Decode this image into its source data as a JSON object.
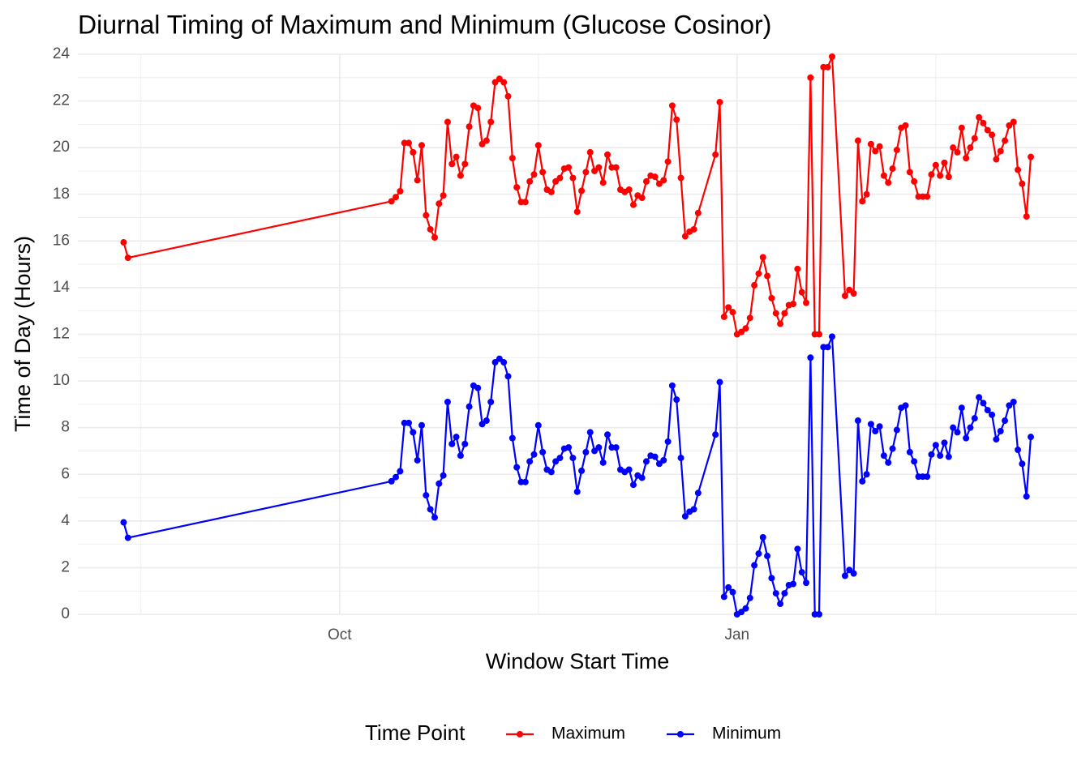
{
  "chart_data": {
    "type": "line",
    "title": "Diurnal Timing of Maximum and Minimum (Glucose Cosinor)",
    "xlabel": "Window Start Time",
    "ylabel": "Time of Day (Hours)",
    "legend_title": "Time Point",
    "legend": "bottom",
    "grid": true,
    "x": [
      -50,
      -49,
      12,
      13,
      14,
      15,
      16,
      17,
      18,
      19,
      20,
      21,
      22,
      23,
      24,
      25,
      26,
      27,
      28,
      29,
      30,
      31,
      32,
      33,
      34,
      35,
      36,
      37,
      38,
      39,
      40,
      41,
      42,
      43,
      44,
      45,
      46,
      47,
      48,
      49,
      50,
      51,
      52,
      53,
      54,
      55,
      56,
      57,
      58,
      59,
      60,
      61,
      62,
      63,
      64,
      65,
      66,
      67,
      68,
      69,
      70,
      71,
      72,
      73,
      74,
      75,
      76,
      77,
      78,
      79,
      80,
      81,
      82,
      83,
      87,
      88,
      89,
      90,
      91,
      92,
      93,
      94,
      95,
      96,
      97,
      98,
      99,
      100,
      101,
      102,
      103,
      104,
      105,
      106,
      107,
      108,
      109,
      110,
      111,
      112,
      113,
      114,
      117,
      118,
      119,
      120,
      121,
      122,
      123,
      124,
      125,
      126,
      127,
      128,
      129,
      130,
      131,
      132,
      133,
      134,
      135,
      136,
      137,
      138,
      139,
      140,
      141,
      142,
      143,
      144,
      145,
      146,
      147,
      148,
      149,
      150,
      151,
      152,
      153,
      154,
      155,
      156,
      157,
      158,
      159,
      160
    ],
    "series": [
      {
        "name": "Maximum",
        "color": "#ff0000",
        "values": [
          15.94,
          15.28,
          17.7,
          17.88,
          18.13,
          20.2,
          20.2,
          19.8,
          18.6,
          20.1,
          17.1,
          16.5,
          16.15,
          17.6,
          17.95,
          21.1,
          19.3,
          19.6,
          18.8,
          19.3,
          20.9,
          21.8,
          21.7,
          20.15,
          20.3,
          21.1,
          22.8,
          22.95,
          22.8,
          22.2,
          19.55,
          18.3,
          17.67,
          17.67,
          18.55,
          18.85,
          20.1,
          18.95,
          18.2,
          18.1,
          18.55,
          18.7,
          19.1,
          19.15,
          18.7,
          17.25,
          18.15,
          18.95,
          19.8,
          19.0,
          19.15,
          18.5,
          19.7,
          19.15,
          19.15,
          18.2,
          18.1,
          18.2,
          17.55,
          17.95,
          17.85,
          18.55,
          18.8,
          18.75,
          18.45,
          18.6,
          19.4,
          21.8,
          21.2,
          18.7,
          16.2,
          16.4,
          16.5,
          17.2,
          19.7,
          21.95,
          12.75,
          13.15,
          12.95,
          12.0,
          12.1,
          12.25,
          12.7,
          14.1,
          14.6,
          15.3,
          14.5,
          13.55,
          12.9,
          12.45,
          12.9,
          13.25,
          13.3,
          14.8,
          13.8,
          13.35,
          23.0,
          12.0,
          12.0,
          23.45,
          23.45,
          23.9,
          13.65,
          13.9,
          13.75,
          20.3,
          17.7,
          18.0,
          20.15,
          19.85,
          20.05,
          18.8,
          18.5,
          19.1,
          19.9,
          20.85,
          20.95,
          18.95,
          18.55,
          17.9,
          17.9,
          17.9,
          18.85,
          19.25,
          18.8,
          19.35,
          18.75,
          20.0,
          19.8,
          20.85,
          19.55,
          20.0,
          20.4,
          21.3,
          21.05,
          20.75,
          20.55,
          19.5,
          19.85,
          20.3,
          20.95,
          21.1,
          19.05,
          18.45,
          17.05,
          19.6
        ]
      },
      {
        "name": "Minimum",
        "color": "#0000ff",
        "values": [
          3.94,
          3.28,
          5.7,
          5.88,
          6.13,
          8.2,
          8.2,
          7.8,
          6.6,
          8.1,
          5.1,
          4.5,
          4.15,
          5.6,
          5.95,
          9.1,
          7.3,
          7.6,
          6.8,
          7.3,
          8.9,
          9.8,
          9.7,
          8.15,
          8.3,
          9.1,
          10.8,
          10.95,
          10.8,
          10.2,
          7.55,
          6.3,
          5.67,
          5.67,
          6.55,
          6.85,
          8.1,
          6.95,
          6.2,
          6.1,
          6.55,
          6.7,
          7.1,
          7.15,
          6.7,
          5.25,
          6.15,
          6.95,
          7.8,
          7.0,
          7.15,
          6.5,
          7.7,
          7.15,
          7.15,
          6.2,
          6.1,
          6.2,
          5.55,
          5.95,
          5.85,
          6.55,
          6.8,
          6.75,
          6.45,
          6.6,
          7.4,
          9.8,
          9.2,
          6.7,
          4.2,
          4.4,
          4.5,
          5.2,
          7.7,
          9.95,
          0.75,
          1.15,
          0.95,
          0.0,
          0.1,
          0.25,
          0.7,
          2.1,
          2.6,
          3.3,
          2.5,
          1.55,
          0.9,
          0.45,
          0.9,
          1.25,
          1.3,
          2.8,
          1.8,
          1.35,
          11.0,
          0.0,
          0.0,
          11.45,
          11.45,
          11.9,
          1.65,
          1.9,
          1.75,
          8.3,
          5.7,
          6.0,
          8.15,
          7.85,
          8.05,
          6.8,
          6.5,
          7.1,
          7.9,
          8.85,
          8.95,
          6.95,
          6.55,
          5.9,
          5.9,
          5.9,
          6.85,
          7.25,
          6.8,
          7.35,
          6.75,
          8.0,
          7.8,
          8.85,
          7.55,
          8.0,
          8.4,
          9.3,
          9.05,
          8.75,
          8.55,
          7.5,
          7.85,
          8.3,
          8.95,
          9.1,
          7.05,
          6.45,
          5.05,
          7.6
        ]
      }
    ],
    "xlim": [
      -60.6,
      170.7
    ],
    "xticks": [
      {
        "value": 0,
        "label": "Oct"
      },
      {
        "value": 92,
        "label": "Jan"
      }
    ],
    "ylim": [
      0,
      24
    ],
    "yticks": [
      0,
      2,
      4,
      6,
      8,
      10,
      12,
      14,
      16,
      18,
      20,
      22,
      24
    ]
  }
}
